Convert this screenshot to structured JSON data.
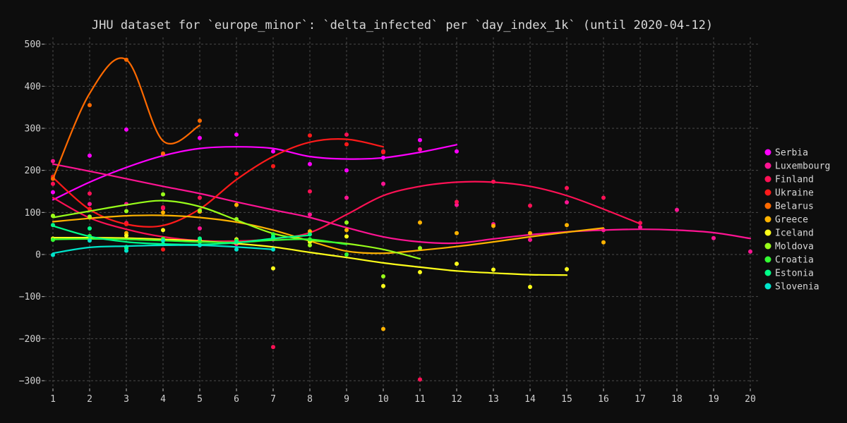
{
  "chart_data": {
    "type": "scatter",
    "title": "JHU dataset for `europe_minor`: `delta_infected` per `day_index_1k` (until 2020-04-12)",
    "xlabel": "",
    "ylabel": "",
    "xlim": [
      0.8,
      20.2
    ],
    "ylim": [
      -330,
      520
    ],
    "x_ticks": [
      1,
      2,
      3,
      4,
      5,
      6,
      7,
      8,
      9,
      10,
      11,
      12,
      13,
      14,
      15,
      16,
      17,
      18,
      19,
      20
    ],
    "y_ticks": [
      -300,
      -200,
      -100,
      0,
      100,
      200,
      300,
      400,
      500
    ],
    "grid": true,
    "legend_position": "right",
    "series": [
      {
        "name": "Serbia",
        "color": "#ff00ff",
        "points": [
          [
            1,
            148
          ],
          [
            2,
            235
          ],
          [
            3,
            297
          ],
          [
            4,
            238
          ],
          [
            5,
            277
          ],
          [
            6,
            285
          ],
          [
            7,
            245
          ],
          [
            8,
            215
          ],
          [
            9,
            200
          ],
          [
            10,
            230
          ],
          [
            11,
            272
          ],
          [
            12,
            245
          ]
        ],
        "trend": [
          [
            1,
            130
          ],
          [
            2,
            172
          ],
          [
            3,
            207
          ],
          [
            4,
            235
          ],
          [
            5,
            252
          ],
          [
            6,
            256
          ],
          [
            7,
            252
          ],
          [
            8,
            233
          ],
          [
            9,
            227
          ],
          [
            10,
            230
          ],
          [
            11,
            243
          ],
          [
            12,
            261
          ]
        ]
      },
      {
        "name": "Luxembourg",
        "color": "#ff1493",
        "points": [
          [
            1,
            222
          ],
          [
            2,
            120
          ],
          [
            3,
            120
          ],
          [
            4,
            110
          ],
          [
            5,
            62
          ],
          [
            6,
            25
          ],
          [
            7,
            36
          ],
          [
            8,
            95
          ],
          [
            9,
            135
          ],
          [
            10,
            168
          ],
          [
            11,
            250
          ],
          [
            12,
            118
          ],
          [
            13,
            72
          ],
          [
            14,
            35
          ],
          [
            15,
            124
          ],
          [
            16,
            58
          ],
          [
            17,
            65
          ],
          [
            18,
            106
          ],
          [
            19,
            39
          ],
          [
            20,
            7
          ]
        ],
        "trend": [
          [
            1,
            215
          ],
          [
            2,
            198
          ],
          [
            3,
            180
          ],
          [
            4,
            162
          ],
          [
            5,
            145
          ],
          [
            6,
            125
          ],
          [
            7,
            106
          ],
          [
            8,
            88
          ],
          [
            9,
            64
          ],
          [
            10,
            42
          ],
          [
            11,
            30
          ],
          [
            12,
            27
          ],
          [
            13,
            37
          ],
          [
            14,
            47
          ],
          [
            15,
            54
          ],
          [
            16,
            58
          ],
          [
            17,
            60
          ],
          [
            18,
            58
          ],
          [
            19,
            52
          ],
          [
            20,
            38
          ]
        ]
      },
      {
        "name": "Finland",
        "color": "#ff1155",
        "points": [
          [
            1,
            168
          ],
          [
            2,
            145
          ],
          [
            3,
            75
          ],
          [
            4,
            112
          ],
          [
            5,
            135
          ],
          [
            6,
            30
          ],
          [
            7,
            -220
          ],
          [
            8,
            150
          ],
          [
            9,
            285
          ],
          [
            10,
            245
          ],
          [
            11,
            -297
          ],
          [
            12,
            125
          ],
          [
            13,
            173
          ],
          [
            14,
            116
          ],
          [
            15,
            158
          ],
          [
            16,
            135
          ],
          [
            17,
            75
          ]
        ],
        "trend": [
          [
            1,
            135
          ],
          [
            2,
            87
          ],
          [
            3,
            60
          ],
          [
            4,
            42
          ],
          [
            5,
            33
          ],
          [
            6,
            32
          ],
          [
            7,
            37
          ],
          [
            8,
            52
          ],
          [
            9,
            95
          ],
          [
            10,
            140
          ],
          [
            11,
            162
          ],
          [
            12,
            172
          ],
          [
            13,
            172
          ],
          [
            14,
            162
          ],
          [
            15,
            140
          ],
          [
            16,
            108
          ],
          [
            17,
            73
          ]
        ]
      },
      {
        "name": "Ukraine",
        "color": "#ff1a1a",
        "points": [
          [
            1,
            185
          ],
          [
            2,
            108
          ],
          [
            3,
            72
          ],
          [
            4,
            12
          ],
          [
            5,
            102
          ],
          [
            6,
            192
          ],
          [
            7,
            210
          ],
          [
            8,
            283
          ],
          [
            9,
            262
          ],
          [
            10,
            243
          ]
        ],
        "trend": [
          [
            1,
            183
          ],
          [
            2,
            107
          ],
          [
            3,
            72
          ],
          [
            4,
            69
          ],
          [
            5,
            108
          ],
          [
            6,
            178
          ],
          [
            7,
            233
          ],
          [
            8,
            267
          ],
          [
            9,
            274
          ],
          [
            10,
            256
          ]
        ]
      },
      {
        "name": "Belarus",
        "color": "#ff6a00",
        "points": [
          [
            1,
            180
          ],
          [
            2,
            355
          ],
          [
            3,
            463
          ],
          [
            4,
            240
          ],
          [
            5,
            318
          ]
        ],
        "trend": [
          [
            1,
            180
          ],
          [
            2,
            383
          ],
          [
            3,
            463
          ],
          [
            4,
            270
          ],
          [
            5,
            307
          ]
        ]
      },
      {
        "name": "Greece",
        "color": "#ffb300",
        "points": [
          [
            1,
            92
          ],
          [
            2,
            88
          ],
          [
            3,
            51
          ],
          [
            4,
            100
          ],
          [
            5,
            102
          ],
          [
            6,
            118
          ],
          [
            7,
            38
          ],
          [
            8,
            55
          ],
          [
            9,
            58
          ],
          [
            10,
            -177
          ],
          [
            11,
            76
          ],
          [
            12,
            51
          ],
          [
            13,
            68
          ],
          [
            14,
            51
          ],
          [
            15,
            70
          ],
          [
            16,
            29
          ]
        ],
        "trend": [
          [
            1,
            78
          ],
          [
            2,
            86
          ],
          [
            3,
            92
          ],
          [
            4,
            93
          ],
          [
            5,
            88
          ],
          [
            6,
            77
          ],
          [
            7,
            58
          ],
          [
            8,
            32
          ],
          [
            9,
            8
          ],
          [
            10,
            3
          ],
          [
            11,
            10
          ],
          [
            12,
            19
          ],
          [
            13,
            30
          ],
          [
            14,
            42
          ],
          [
            15,
            53
          ],
          [
            16,
            63
          ]
        ]
      },
      {
        "name": "Iceland",
        "color": "#ffff1a",
        "points": [
          [
            1,
            38
          ],
          [
            2,
            40
          ],
          [
            3,
            45
          ],
          [
            4,
            58
          ],
          [
            5,
            35
          ],
          [
            6,
            36
          ],
          [
            7,
            -33
          ],
          [
            8,
            30
          ],
          [
            9,
            43
          ],
          [
            10,
            -75
          ],
          [
            11,
            -42
          ],
          [
            12,
            -22
          ],
          [
            13,
            -36
          ],
          [
            14,
            -77
          ],
          [
            15,
            -35
          ]
        ],
        "trend": [
          [
            1,
            40
          ],
          [
            2,
            40
          ],
          [
            3,
            39
          ],
          [
            4,
            36
          ],
          [
            5,
            32
          ],
          [
            6,
            26
          ],
          [
            7,
            18
          ],
          [
            8,
            5
          ],
          [
            9,
            -7
          ],
          [
            10,
            -20
          ],
          [
            11,
            -30
          ],
          [
            12,
            -39
          ],
          [
            13,
            -44
          ],
          [
            14,
            -48
          ],
          [
            15,
            -49
          ]
        ]
      },
      {
        "name": "Moldova",
        "color": "#99ff1a",
        "points": [
          [
            1,
            92
          ],
          [
            2,
            90
          ],
          [
            3,
            103
          ],
          [
            4,
            143
          ],
          [
            5,
            105
          ],
          [
            6,
            84
          ],
          [
            7,
            39
          ],
          [
            8,
            22
          ],
          [
            9,
            76
          ],
          [
            10,
            -52
          ],
          [
            11,
            15
          ]
        ],
        "trend": [
          [
            1,
            88
          ],
          [
            2,
            103
          ],
          [
            3,
            118
          ],
          [
            4,
            128
          ],
          [
            5,
            114
          ],
          [
            6,
            82
          ],
          [
            7,
            50
          ],
          [
            8,
            34
          ],
          [
            9,
            26
          ],
          [
            10,
            12
          ],
          [
            11,
            -10
          ]
        ]
      },
      {
        "name": "Croatia",
        "color": "#33ff33",
        "points": [
          [
            1,
            35
          ],
          [
            2,
            44
          ],
          [
            3,
            15
          ],
          [
            4,
            37
          ],
          [
            5,
            30
          ],
          [
            6,
            33
          ],
          [
            7,
            48
          ],
          [
            8,
            36
          ],
          [
            9,
            0
          ]
        ],
        "trend": [
          [
            1,
            36
          ],
          [
            2,
            37
          ],
          [
            3,
            36
          ],
          [
            4,
            33
          ],
          [
            5,
            30
          ],
          [
            6,
            29
          ],
          [
            7,
            34
          ],
          [
            8,
            36
          ],
          [
            9,
            24
          ]
        ]
      },
      {
        "name": "Estonia",
        "color": "#00ff88",
        "points": [
          [
            1,
            70
          ],
          [
            2,
            62
          ],
          [
            3,
            18
          ],
          [
            4,
            25
          ],
          [
            5,
            38
          ],
          [
            6,
            30
          ],
          [
            7,
            42
          ],
          [
            8,
            48
          ]
        ],
        "trend": [
          [
            1,
            68
          ],
          [
            2,
            43
          ],
          [
            3,
            30
          ],
          [
            4,
            25
          ],
          [
            5,
            24
          ],
          [
            6,
            28
          ],
          [
            7,
            38
          ],
          [
            8,
            46
          ]
        ]
      },
      {
        "name": "Slovenia",
        "color": "#00e5cc",
        "points": [
          [
            1,
            -1
          ],
          [
            2,
            33
          ],
          [
            3,
            9
          ],
          [
            4,
            33
          ],
          [
            5,
            22
          ],
          [
            6,
            12
          ],
          [
            7,
            12
          ]
        ],
        "trend": [
          [
            1,
            3
          ],
          [
            2,
            17
          ],
          [
            3,
            20
          ],
          [
            4,
            22
          ],
          [
            5,
            22
          ],
          [
            6,
            18
          ],
          [
            7,
            12
          ]
        ]
      }
    ]
  }
}
